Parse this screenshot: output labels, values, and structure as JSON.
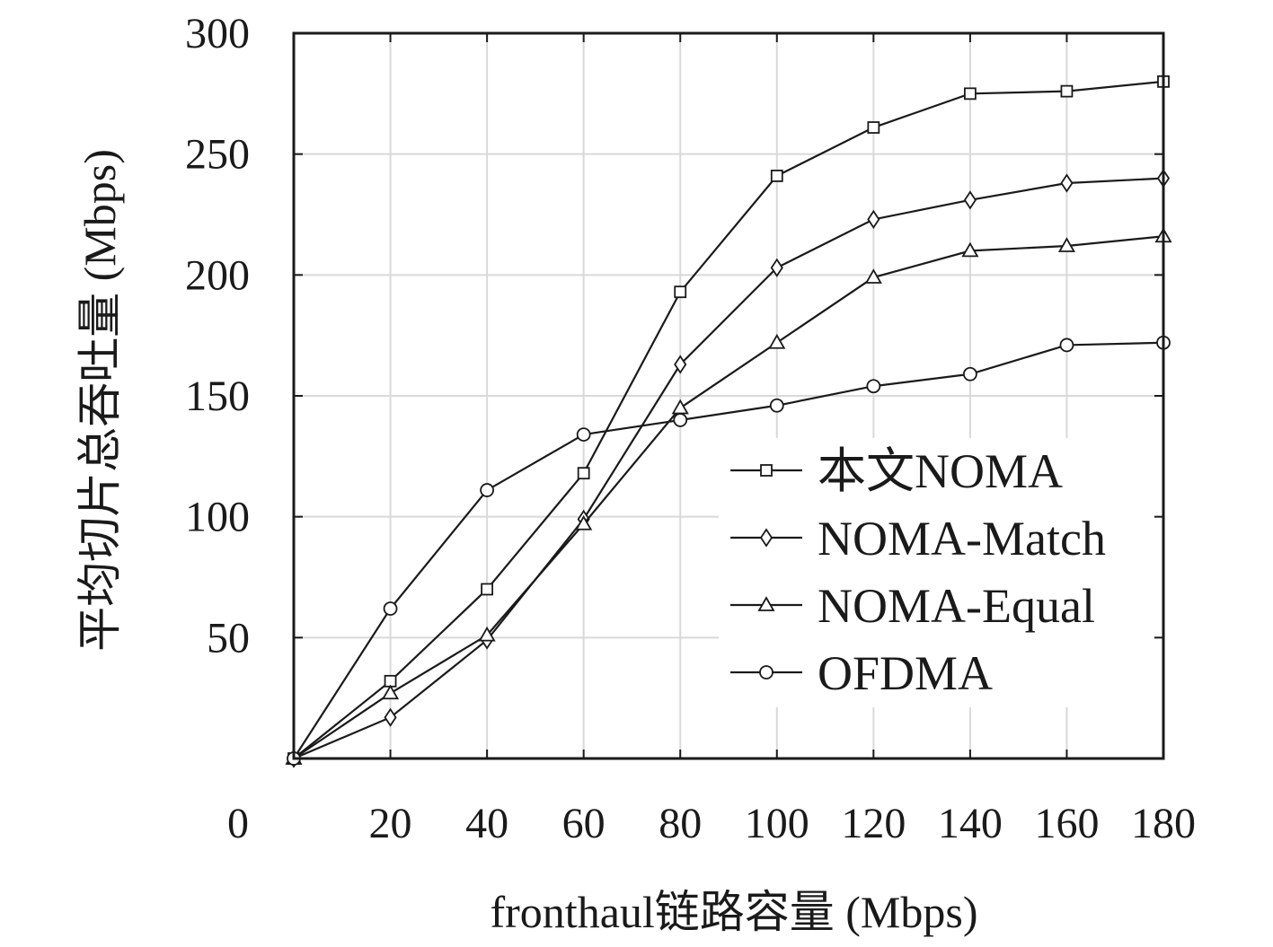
{
  "chart_data": {
    "type": "line",
    "title": "",
    "xlabel": "fronthaul链路容量 (Mbps)",
    "ylabel": "平均切片总吞吐量 (Mbps)",
    "xlim": [
      0,
      180
    ],
    "ylim": [
      0,
      300
    ],
    "x_tick_values": [
      20,
      40,
      60,
      80,
      100,
      120,
      140,
      160,
      180
    ],
    "y_tick_values": [
      50,
      100,
      150,
      200,
      250,
      300
    ],
    "origin_label": "0",
    "grid": true,
    "legend_position": "center-right",
    "x": [
      0,
      20,
      40,
      60,
      80,
      100,
      120,
      140,
      160,
      180
    ],
    "series": [
      {
        "name": "本文NOMA",
        "marker": "square",
        "values": [
          0,
          32,
          70,
          118,
          193,
          241,
          261,
          275,
          276,
          280
        ]
      },
      {
        "name": "NOMA-Match",
        "marker": "diamond",
        "values": [
          0,
          17,
          49,
          99,
          163,
          203,
          223,
          231,
          238,
          240
        ]
      },
      {
        "name": "NOMA-Equal",
        "marker": "triangle",
        "values": [
          0,
          27,
          51,
          97,
          145,
          172,
          199,
          210,
          212,
          216
        ]
      },
      {
        "name": "OFDMA",
        "marker": "circle",
        "values": [
          0,
          62,
          111,
          134,
          140,
          146,
          154,
          159,
          171,
          172
        ]
      }
    ],
    "colors": {
      "line": "#1a1a1a",
      "grid": "#d9d9d9",
      "marker_fill": "#ffffff"
    }
  }
}
